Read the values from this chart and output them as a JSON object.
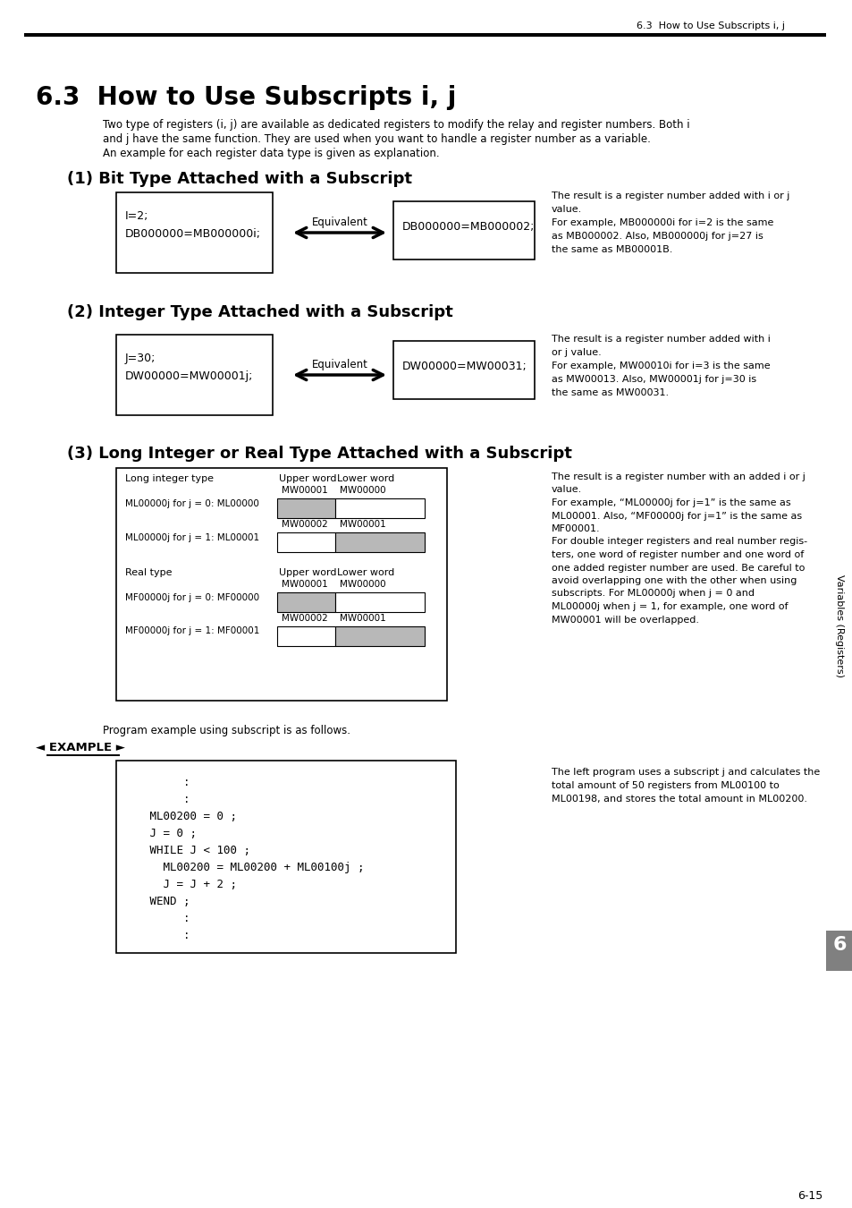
{
  "page_header": "6.3  How to Use Subscripts i, j",
  "title": "6.3  How to Use Subscripts i, j",
  "intro_line1": "Two type of registers (i, j) are available as dedicated registers to modify the relay and register numbers. Both i",
  "intro_line2": "and j have the same function. They are used when you want to handle a register number as a variable.",
  "intro_line3": "An example for each register data type is given as explanation.",
  "section1_title": "(1) Bit Type Attached with a Subscript",
  "section1_box1_line1": "I=2;",
  "section1_box1_line2": "DB000000=MB000000i;",
  "section1_equiv": "Equivalent",
  "section1_box2_text": "DB000000=MB000002;",
  "section1_note_lines": [
    "The result is a register number added with i or j",
    "value.",
    "For example, MB000000i for i=2 is the same",
    "as MB000002. Also, MB000000j for j=27 is",
    "the same as MB00001B."
  ],
  "section2_title": "(2) Integer Type Attached with a Subscript",
  "section2_box1_line1": "J=30;",
  "section2_box1_line2": "DW00000=MW00001j;",
  "section2_equiv": "Equivalent",
  "section2_box2_text": "DW00000=MW00031;",
  "section2_note_lines": [
    "The result is a register number added with i",
    "or j value.",
    "For example, MW00010i for i=3 is the same",
    "as MW00013. Also, MW00001j for j=30 is",
    "the same as MW00031."
  ],
  "section3_title": "(3) Long Integer or Real Type Attached with a Subscript",
  "long_int_label": "Long integer type",
  "real_label": "Real type",
  "upper_word": "Upper word",
  "lower_word": "Lower word",
  "mw00001": "MW00001",
  "mw00000": "MW00000",
  "mw00002": "MW00002",
  "ml_j0": "ML00000j for j = 0: ML00000",
  "ml_j1": "ML00000j for j = 1: ML00001",
  "mf_j0": "MF00000j for j = 0: MF00000",
  "mf_j1": "MF00000j for j = 1: MF00001",
  "section3_note_lines": [
    "The result is a register number with an added i or j",
    "value.",
    "For example, “ML00000j for j=1” is the same as",
    "ML00001. Also, “MF00000j for j=1” is the same as",
    "MF00001.",
    "For double integer registers and real number regis-",
    "ters, one word of register number and one word of",
    "one added register number are used. Be careful to",
    "avoid overlapping one with the other when using",
    "subscripts. For ML00000j when j = 0 and",
    "ML00000j when j = 1, for example, one word of",
    "MW00001 will be overlapped."
  ],
  "prog_example_text": "Program example using subscript is as follows.",
  "example_label": "◄ EXAMPLE ►",
  "example_code_lines": [
    "        :",
    "        :",
    "   ML00200 = 0 ;",
    "   J = 0 ;",
    "   WHILE J < 100 ;",
    "     ML00200 = ML00200 + ML00100j ;",
    "     J = J + 2 ;",
    "   WEND ;",
    "        :",
    "        :"
  ],
  "example_note_lines": [
    "The left program uses a subscript j and calculates the",
    "total amount of 50 registers from ML00100 to",
    "ML00198, and stores the total amount in ML00200."
  ],
  "page_number": "6-15",
  "sidebar_text": "Variables (Registers)",
  "section_number": "6",
  "bg_color": "#ffffff",
  "gray_fill": "#b8b8b8"
}
